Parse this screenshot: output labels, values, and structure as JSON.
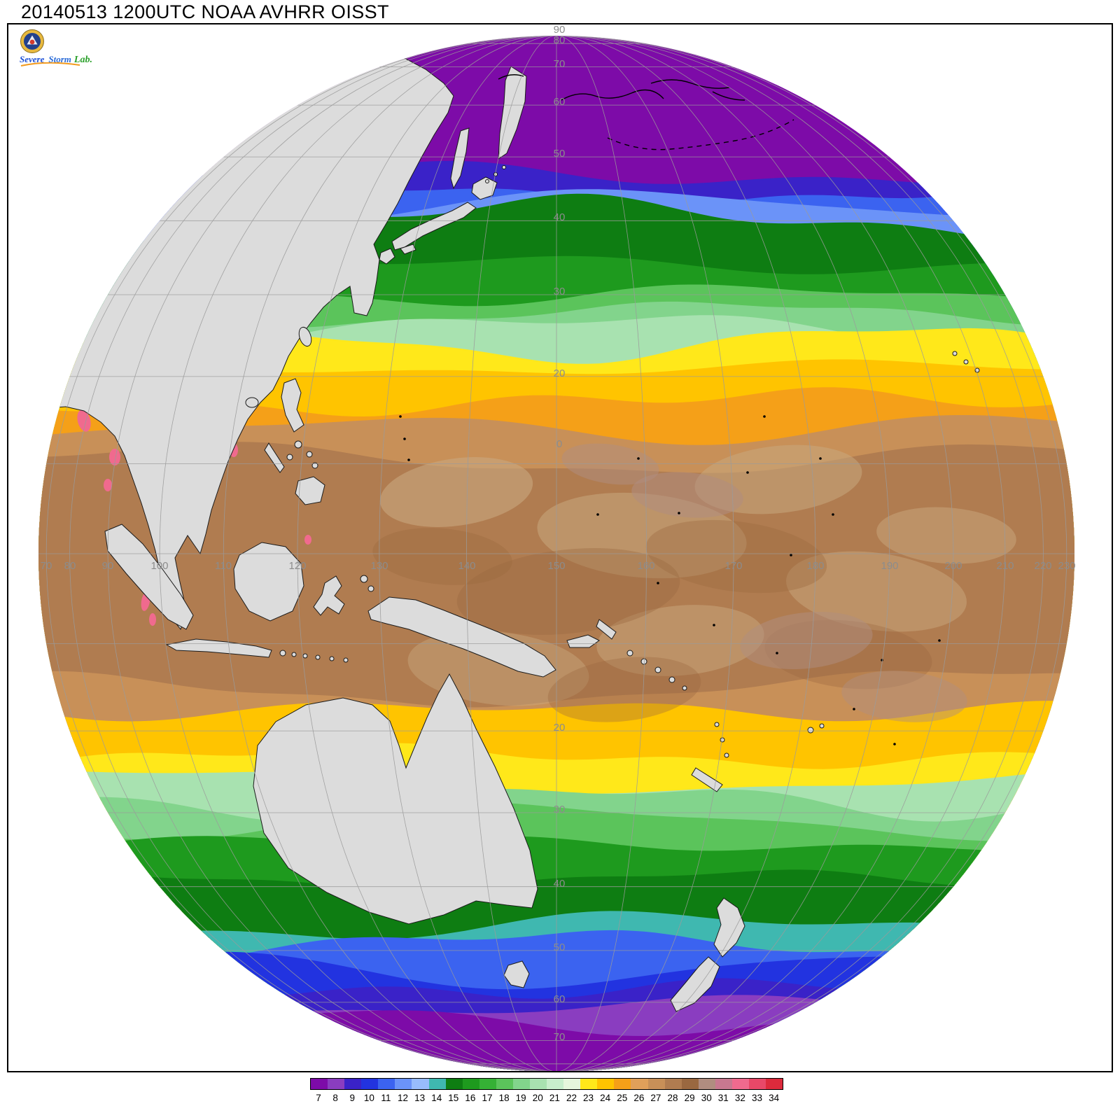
{
  "title": "20140513 1200UTC NOAA AVHRR OISST",
  "logo": {
    "severe": "Severe",
    "storm": "Storm",
    "lab": "Lab."
  },
  "map": {
    "projection": "orthographic-globe-pacific",
    "lon_labels": [
      "70",
      "80",
      "90",
      "100",
      "110",
      "120",
      "130",
      "140",
      "150",
      "160",
      "170",
      "180",
      "190",
      "200",
      "210",
      "220",
      "230"
    ],
    "lat_labels": [
      "90",
      "80",
      "70",
      "60",
      "50",
      "40",
      "30",
      "20",
      "0",
      "20",
      "30",
      "40",
      "50",
      "60",
      "70"
    ]
  },
  "colorbar": {
    "values": [
      7,
      8,
      9,
      10,
      11,
      12,
      13,
      14,
      15,
      16,
      17,
      18,
      19,
      20,
      21,
      22,
      23,
      24,
      25,
      26,
      27,
      28,
      29,
      30,
      31,
      32,
      33,
      34
    ],
    "colors": [
      "#7D0BA8",
      "#8A3DC0",
      "#3A22C8",
      "#2233E0",
      "#3B63F0",
      "#6B93F8",
      "#98BCFC",
      "#3FB8B0",
      "#0E7D12",
      "#1E9A1E",
      "#35B135",
      "#5BC45B",
      "#82D48C",
      "#A8E2B0",
      "#C8EECC",
      "#E6F6DC",
      "#FFE81A",
      "#FFC400",
      "#F5A018",
      "#E0A05A",
      "#C89058",
      "#B07C50",
      "#9A6840",
      "#B08D80",
      "#C87890",
      "#F06A8E",
      "#E84868",
      "#DC2A3C"
    ]
  },
  "sst_bands": [
    {
      "lat": 90,
      "color": "#7D0BA8"
    },
    {
      "lat": 47,
      "color": "#3A22C8"
    },
    {
      "lat": 44.5,
      "color": "#3B63F0"
    },
    {
      "lat": 42.5,
      "color": "#6B93F8"
    },
    {
      "lat": 40.5,
      "color": "#0E7D12"
    },
    {
      "lat": 34,
      "color": "#1E9A1E"
    },
    {
      "lat": 30,
      "color": "#5BC45B"
    },
    {
      "lat": 27.5,
      "color": "#82D48C"
    },
    {
      "lat": 25.5,
      "color": "#A8E2B0"
    },
    {
      "lat": 24,
      "color": "#FFE81A"
    },
    {
      "lat": 21,
      "color": "#FFC400"
    },
    {
      "lat": 17,
      "color": "#F5A018"
    },
    {
      "lat": 14,
      "color": "#C89058"
    },
    {
      "lat": 10.5,
      "color": "#B07C50"
    },
    {
      "lat": -15,
      "color": "#C89058"
    },
    {
      "lat": -17.5,
      "color": "#FFC400"
    },
    {
      "lat": -23,
      "color": "#FFE81A"
    },
    {
      "lat": -26,
      "color": "#A8E2B0"
    },
    {
      "lat": -28.5,
      "color": "#82D48C"
    },
    {
      "lat": -31,
      "color": "#5BC45B"
    },
    {
      "lat": -34,
      "color": "#1E9A1E"
    },
    {
      "lat": -39,
      "color": "#0E7D12"
    },
    {
      "lat": -46,
      "color": "#3FB8B0"
    },
    {
      "lat": -49.5,
      "color": "#3B63F0"
    },
    {
      "lat": -53.5,
      "color": "#2233E0"
    },
    {
      "lat": -57,
      "color": "#3A22C8"
    },
    {
      "lat": -61.5,
      "color": "#8A3DC0"
    },
    {
      "lat": -64.5,
      "color": "#7D0BA8"
    }
  ]
}
